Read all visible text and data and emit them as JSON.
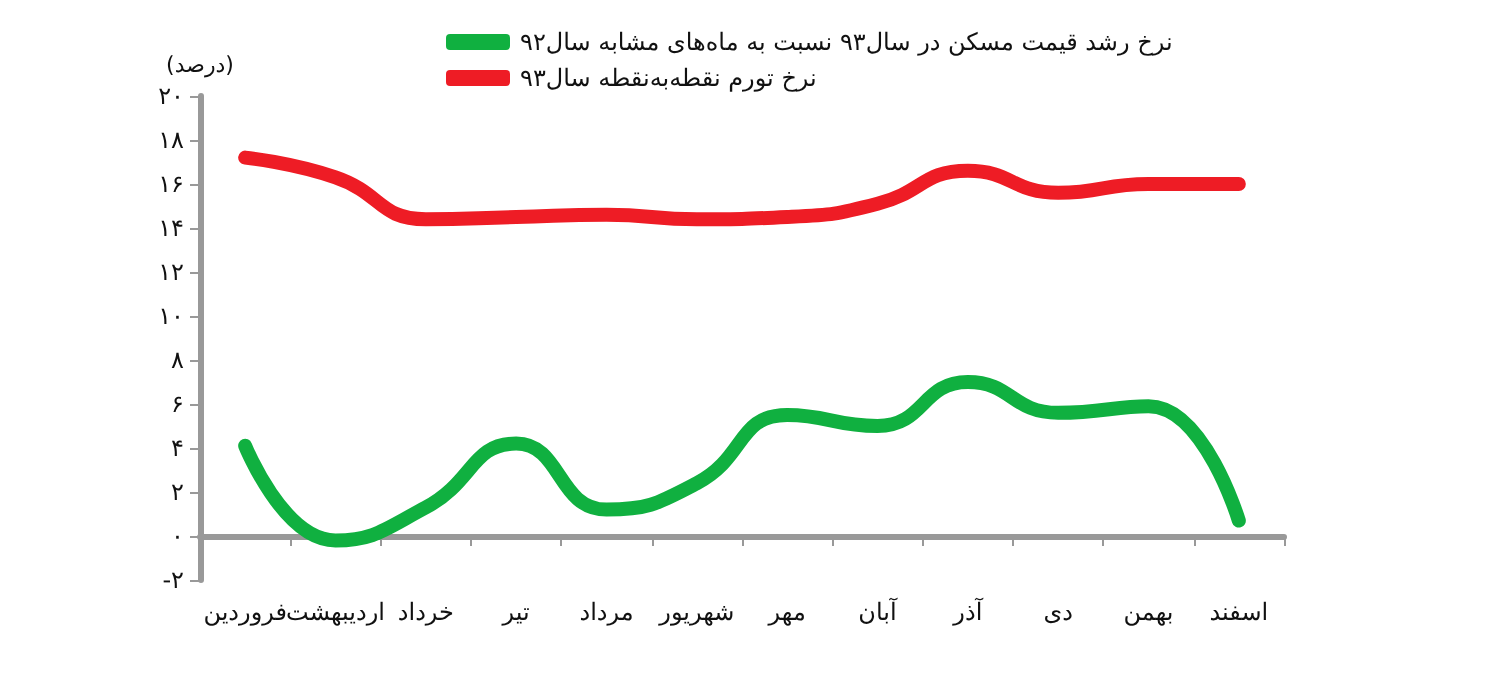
{
  "chart_data": {
    "type": "line",
    "ylabel": "(درصد)",
    "categories": [
      "فروردین",
      "اردیبهشت",
      "خرداد",
      "تیر",
      "مرداد",
      "شهریور",
      "مهر",
      "آبان",
      "آذر",
      "دی",
      "بهمن",
      "اسفند"
    ],
    "series": [
      {
        "name": "نرخ رشد قیمت مسکن در سال۹۳ نسبت به ماه‌های مشابه سال۹۲",
        "color": "#10b040",
        "values": [
          4.1,
          -0.2,
          1.3,
          4.2,
          1.2,
          2.4,
          5.5,
          5.0,
          7.0,
          5.6,
          5.9,
          0.7
        ]
      },
      {
        "name": "نرخ تورم نقطه‌به‌نقطه سال۹۳",
        "color": "#ee1c25",
        "values": [
          17.2,
          16.3,
          14.4,
          14.5,
          14.6,
          14.4,
          14.5,
          15.1,
          16.6,
          15.6,
          16.0,
          16.0
        ]
      }
    ],
    "ylim": [
      -2,
      20
    ],
    "yticks": [
      {
        "value": -2,
        "label": "-۲"
      },
      {
        "value": 0,
        "label": "۰"
      },
      {
        "value": 2,
        "label": "۲"
      },
      {
        "value": 4,
        "label": "۴"
      },
      {
        "value": 6,
        "label": "۶"
      },
      {
        "value": 8,
        "label": "۸"
      },
      {
        "value": 10,
        "label": "۱۰"
      },
      {
        "value": 12,
        "label": "۱۲"
      },
      {
        "value": 14,
        "label": "۱۴"
      },
      {
        "value": 16,
        "label": "۱۶"
      },
      {
        "value": 18,
        "label": "۱۸"
      },
      {
        "value": 20,
        "label": "۲۰"
      }
    ],
    "legend": "top",
    "marker": "none",
    "line_style": "solid"
  }
}
